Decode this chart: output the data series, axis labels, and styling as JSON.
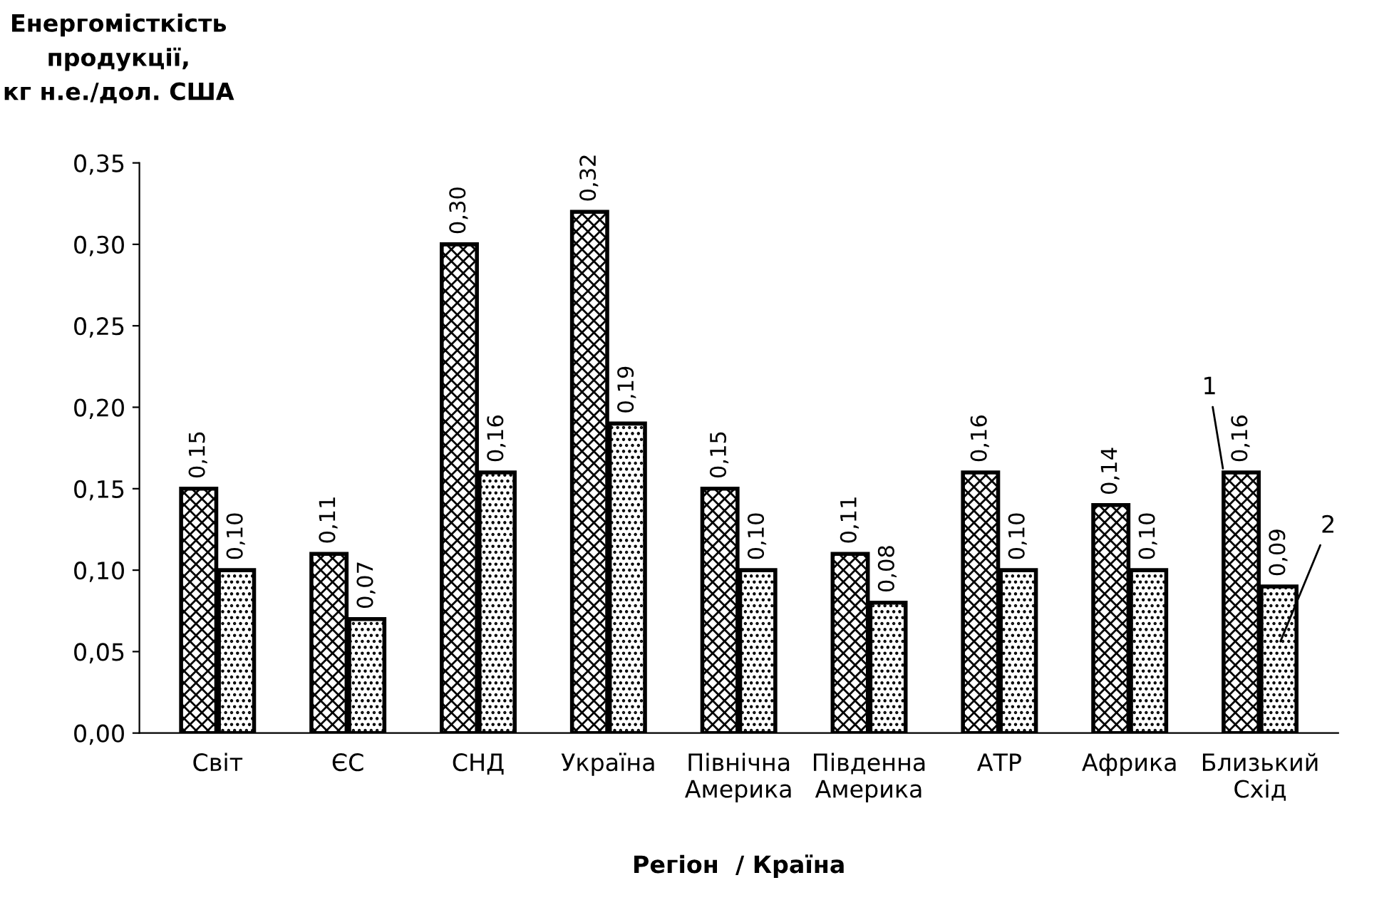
{
  "chart_data": {
    "type": "bar",
    "ylabel": "Енергомісткість\nпродукції,\nкг н.е./дол. США",
    "xlabel": "Регіон  / Країна",
    "categories": [
      "Світ",
      "ЄС",
      "СНД",
      "Україна",
      "Північна\nАмерика",
      "Південна\nАмерика",
      "АТР",
      "Африка",
      "Близький\nСхід"
    ],
    "series": [
      {
        "name": "1",
        "color": "#000000",
        "values": [
          0.15,
          0.11,
          0.3,
          0.32,
          0.15,
          0.11,
          0.16,
          0.14,
          0.16
        ],
        "value_labels": [
          "0,15",
          "0,11",
          "0,30",
          "0,32",
          "0,15",
          "0,11",
          "0,16",
          "0,14",
          "0,16"
        ]
      },
      {
        "name": "2",
        "color": "#000000",
        "values": [
          0.1,
          0.07,
          0.16,
          0.19,
          0.1,
          0.08,
          0.1,
          0.1,
          0.09
        ],
        "value_labels": [
          "0,10",
          "0,07",
          "0,16",
          "0,19",
          "0,10",
          "0,08",
          "0,10",
          "0,10",
          "0,09"
        ]
      }
    ],
    "ylim": [
      0,
      0.35
    ],
    "yticks": [
      {
        "value": 0,
        "label": "0,00"
      },
      {
        "value": 0.05,
        "label": "0,05"
      },
      {
        "value": 0.1,
        "label": "0,10"
      },
      {
        "value": 0.15,
        "label": "0,15"
      },
      {
        "value": 0.2,
        "label": "0,20"
      },
      {
        "value": 0.25,
        "label": "0,25"
      },
      {
        "value": 0.3,
        "label": "0,30"
      },
      {
        "value": 0.35,
        "label": "0,35"
      }
    ],
    "grid": false,
    "legend": false
  }
}
